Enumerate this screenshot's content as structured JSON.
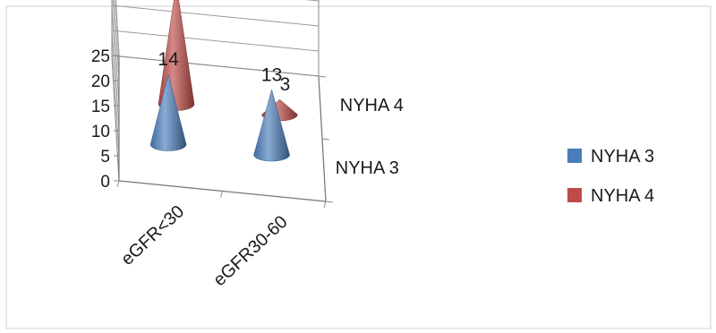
{
  "chart_data": {
    "type": "bar",
    "shape": "cone",
    "view": "3d",
    "categories": [
      "eGFR<30",
      "eGFR30-60"
    ],
    "series": [
      {
        "name": "NYHA 3",
        "values": [
          14,
          13
        ],
        "color": "#4a7ebb"
      },
      {
        "name": "NYHA 4",
        "values": [
          24,
          3
        ],
        "color": "#be4b48"
      }
    ],
    "yticks": [
      "0",
      "5",
      "10",
      "15",
      "20",
      "25"
    ],
    "ylim": [
      0,
      25
    ],
    "depth_labels": [
      "NYHA 4",
      "NYHA 3"
    ],
    "data_labels": true,
    "grid": true,
    "legend": "right"
  }
}
